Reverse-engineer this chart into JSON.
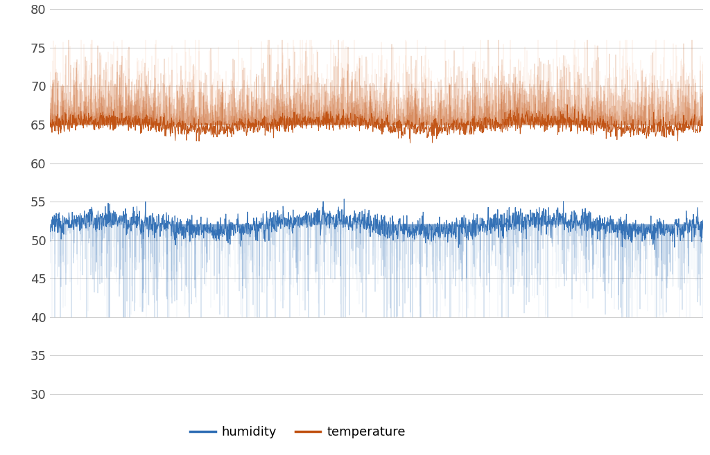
{
  "ylim": [
    28,
    80
  ],
  "yticks": [
    30,
    35,
    40,
    45,
    50,
    55,
    60,
    65,
    70,
    75,
    80
  ],
  "humidity_base": 52.0,
  "humidity_min": 40.0,
  "humidity_max": 58.0,
  "temp_base": 65.0,
  "temp_min": 63.5,
  "temp_max": 76.0,
  "n_points": 2000,
  "humidity_color": "#2E6DB4",
  "humidity_color_light": "#A8C4E0",
  "temperature_color": "#C05010",
  "temperature_color_light": "#F0A878",
  "background_color": "#FFFFFF",
  "grid_color": "#D0D0D0",
  "legend_fontsize": 13,
  "tick_fontsize": 13,
  "figure_width": 10.24,
  "figure_height": 6.57
}
